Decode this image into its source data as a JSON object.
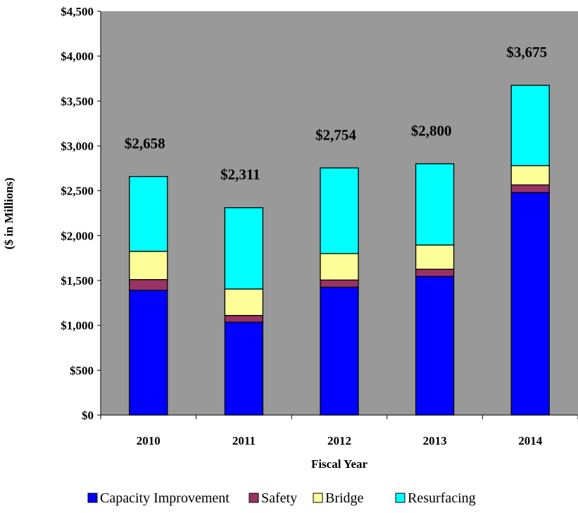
{
  "chart_data": {
    "type": "bar",
    "stacked": true,
    "title": "",
    "xlabel": "Fiscal Year",
    "ylabel": "($ in Millions)",
    "ylim": [
      0,
      4500
    ],
    "yticks": [
      "$0",
      "$500",
      "$1,000",
      "$1,500",
      "$2,000",
      "$2,500",
      "$3,000",
      "$3,500",
      "$4,000",
      "$4,500"
    ],
    "ytick_values": [
      0,
      500,
      1000,
      1500,
      2000,
      2500,
      3000,
      3500,
      4000,
      4500
    ],
    "categories": [
      "2010",
      "2011",
      "2012",
      "2013",
      "2014"
    ],
    "series": [
      {
        "name": "Capacity Improvement",
        "color": "#0000FF",
        "values": [
          1390,
          1035,
          1425,
          1545,
          2480
        ]
      },
      {
        "name": "Safety",
        "color": "#993366",
        "values": [
          120,
          75,
          80,
          80,
          85
        ]
      },
      {
        "name": "Bridge",
        "color": "#FFFF99",
        "values": [
          315,
          295,
          295,
          270,
          215
        ]
      },
      {
        "name": "Resurfacing",
        "color": "#00FFFF",
        "values": [
          833,
          906,
          954,
          905,
          895
        ]
      }
    ],
    "totals": [
      "$2,658",
      "$2,311",
      "$2,754",
      "$2,800",
      "$3,675"
    ],
    "plot_background": "#999999",
    "grid": false,
    "legend_position": "bottom"
  }
}
